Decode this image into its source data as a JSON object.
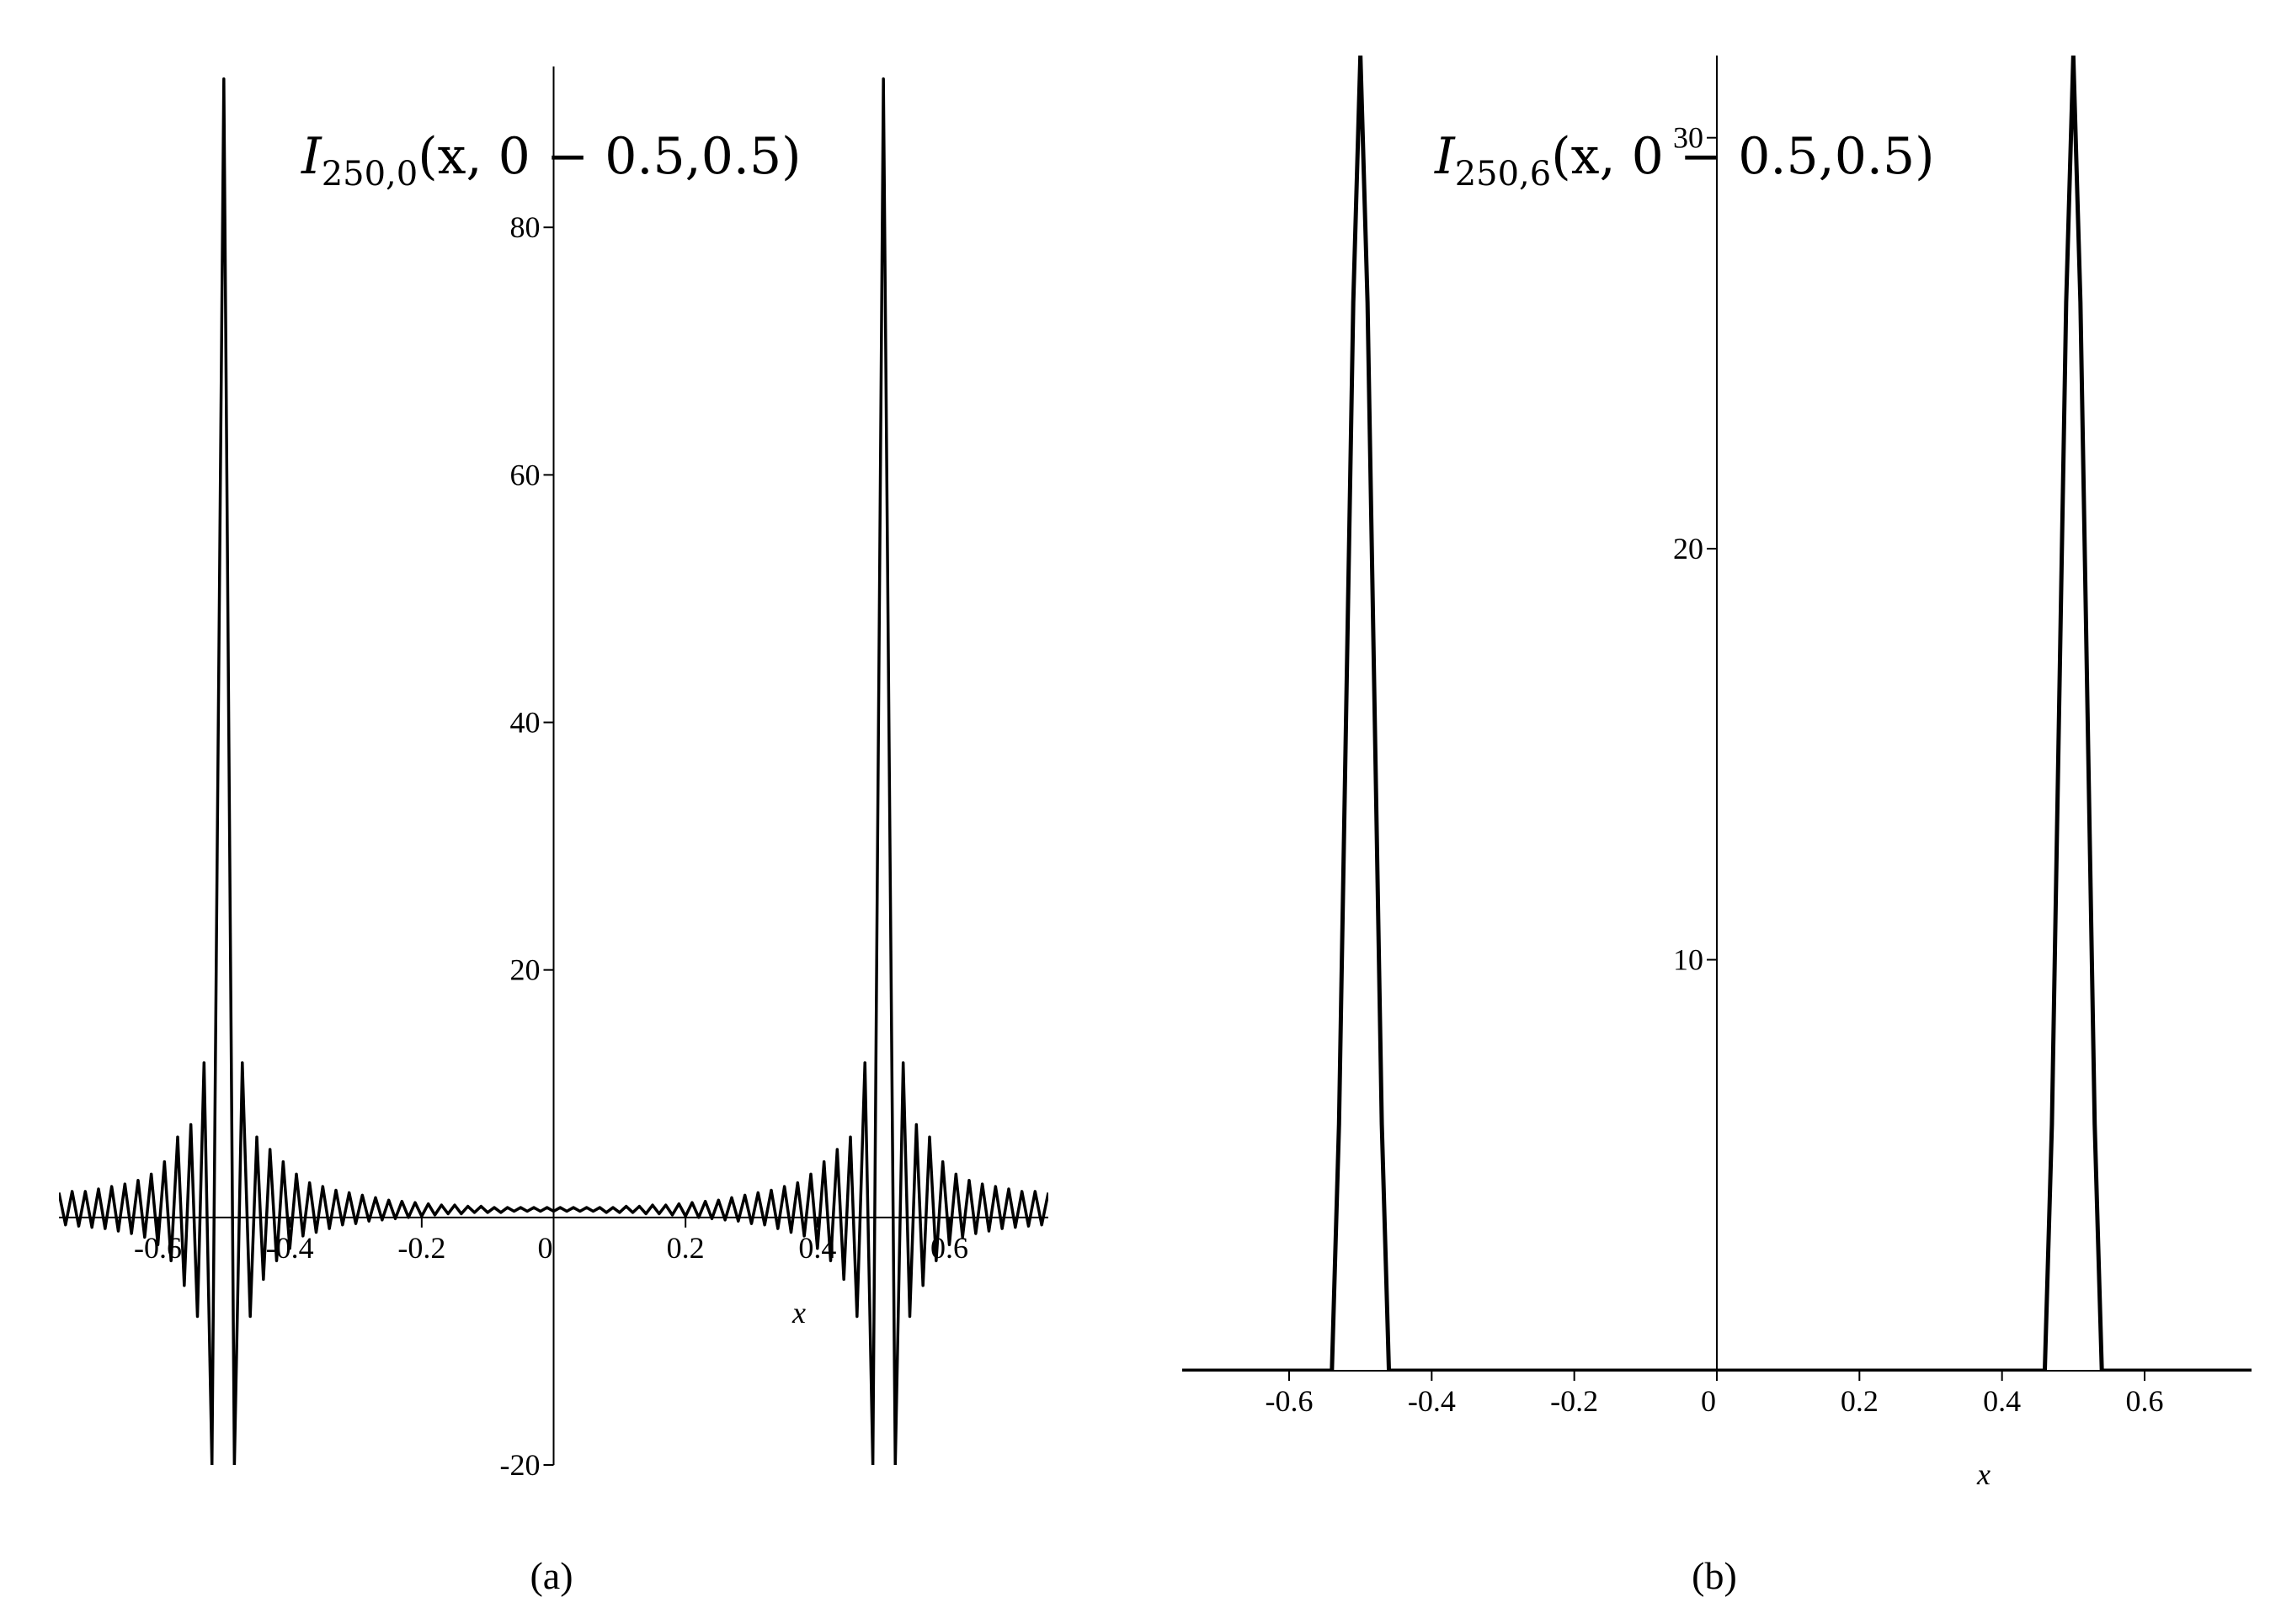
{
  "chart_data": [
    {
      "type": "line",
      "panel_label": "(a)",
      "title": {
        "main": "I",
        "sub": "250,0",
        "args": "(x, 0 − 0.5,0.5)"
      },
      "x_label": "x",
      "xlim": [
        -0.75,
        0.75
      ],
      "ylim": [
        -20,
        93
      ],
      "xticks": [
        -0.6,
        -0.4,
        -0.2,
        0,
        0.2,
        0.4,
        0.6
      ],
      "yticks": [
        -20,
        20,
        40,
        60,
        80
      ],
      "x": [
        -0.75,
        -0.74,
        -0.73,
        -0.72,
        -0.71,
        -0.7,
        -0.69,
        -0.68,
        -0.67,
        -0.66,
        -0.65,
        -0.64,
        -0.63,
        -0.62,
        -0.61,
        -0.6,
        -0.59,
        -0.58,
        -0.57,
        -0.56,
        -0.55,
        -0.54,
        -0.53,
        -0.518,
        -0.5,
        -0.484,
        -0.472,
        -0.46,
        -0.45,
        -0.44,
        -0.43,
        -0.42,
        -0.41,
        -0.4,
        -0.39,
        -0.38,
        -0.37,
        -0.36,
        -0.35,
        -0.34,
        -0.33,
        -0.32,
        -0.31,
        -0.3,
        -0.29,
        -0.28,
        -0.27,
        -0.26,
        -0.25,
        -0.24,
        -0.23,
        -0.22,
        -0.21,
        -0.2,
        -0.19,
        -0.18,
        -0.17,
        -0.16,
        -0.15,
        -0.14,
        -0.13,
        -0.12,
        -0.11,
        -0.1,
        -0.09,
        -0.08,
        -0.07,
        -0.06,
        -0.05,
        -0.04,
        -0.03,
        -0.02,
        -0.01,
        0,
        0.01,
        0.02,
        0.03,
        0.04,
        0.05,
        0.06,
        0.07,
        0.08,
        0.09,
        0.1,
        0.11,
        0.12,
        0.13,
        0.14,
        0.15,
        0.16,
        0.17,
        0.18,
        0.19,
        0.2,
        0.21,
        0.22,
        0.23,
        0.24,
        0.25,
        0.26,
        0.27,
        0.28,
        0.29,
        0.3,
        0.31,
        0.32,
        0.33,
        0.34,
        0.35,
        0.36,
        0.37,
        0.38,
        0.39,
        0.4,
        0.41,
        0.42,
        0.43,
        0.44,
        0.45,
        0.46,
        0.472,
        0.484,
        0.5,
        0.518,
        0.53,
        0.54,
        0.55,
        0.56,
        0.57,
        0.58,
        0.59,
        0.6,
        0.61,
        0.62,
        0.63,
        0.64,
        0.65,
        0.66,
        0.67,
        0.68,
        0.69,
        0.7,
        0.71,
        0.72,
        0.73,
        0.74,
        0.75
      ],
      "series": [
        {
          "color": "#000000",
          "values": [
            2.0,
            -0.6,
            2.1,
            -0.7,
            2.1,
            -0.8,
            2.3,
            -0.9,
            2.5,
            -1.1,
            2.7,
            -1.3,
            3.0,
            -1.6,
            3.5,
            -2.2,
            4.5,
            -3.5,
            6.5,
            -5.5,
            7.5,
            -8,
            12.5,
            -20,
            92,
            -20,
            12.5,
            -8,
            6.5,
            -5,
            5.5,
            -3.5,
            4.5,
            -2.5,
            3.5,
            -1.5,
            2.8,
            -1.2,
            2.5,
            -0.9,
            2.2,
            -0.6,
            2.0,
            -0.5,
            1.8,
            -0.3,
            1.6,
            -0.2,
            1.4,
            -0.1,
            1.3,
            0.0,
            1.2,
            0.1,
            1.1,
            0.2,
            1.0,
            0.3,
            1.0,
            0.3,
            0.9,
            0.4,
            0.9,
            0.4,
            0.8,
            0.4,
            0.8,
            0.5,
            0.8,
            0.5,
            0.8,
            0.5,
            0.8,
            0.5,
            0.8,
            0.5,
            0.8,
            0.5,
            0.8,
            0.5,
            0.8,
            0.4,
            0.8,
            0.4,
            0.9,
            0.4,
            0.9,
            0.3,
            1.0,
            0.3,
            1.0,
            0.2,
            1.1,
            0.1,
            1.2,
            0.0,
            1.3,
            -0.1,
            1.4,
            -0.2,
            1.6,
            -0.3,
            1.8,
            -0.5,
            2.0,
            -0.6,
            2.2,
            -0.9,
            2.5,
            -1.2,
            2.8,
            -1.5,
            3.5,
            -2.5,
            4.5,
            -3.5,
            5.5,
            -5,
            6.5,
            -8,
            12.5,
            -20,
            92,
            -20,
            12.5,
            -8,
            7.5,
            -5.5,
            6.5,
            -3.5,
            4.5,
            -2.2,
            3.5,
            -1.6,
            3.0,
            -1.3,
            2.7,
            -1.1,
            2.5,
            -0.9,
            2.3,
            -0.8,
            2.1,
            -0.7,
            2.1,
            -0.6,
            2.0
          ]
        }
      ]
    },
    {
      "type": "line",
      "panel_label": "(b)",
      "title": {
        "main": "I",
        "sub": "250,6",
        "args": "(x, 0 − 0.5,0.5)"
      },
      "x_label": "x",
      "xlim": [
        -0.75,
        0.75
      ],
      "ylim": [
        0,
        32
      ],
      "xticks": [
        -0.6,
        -0.4,
        -0.2,
        0,
        0.2,
        0.4,
        0.6
      ],
      "yticks": [
        10,
        20,
        30
      ],
      "x": [
        -0.75,
        -0.54,
        -0.53,
        -0.52,
        -0.51,
        -0.5,
        -0.49,
        -0.48,
        -0.47,
        -0.46,
        0.46,
        0.47,
        0.48,
        0.49,
        0.5,
        0.51,
        0.52,
        0.53,
        0.54,
        0.75
      ],
      "series": [
        {
          "color": "#000000",
          "values": [
            0,
            0,
            6,
            16,
            26,
            32,
            26,
            16,
            6,
            0,
            0,
            6,
            16,
            26,
            32,
            26,
            16,
            6,
            0,
            0
          ]
        }
      ]
    }
  ]
}
